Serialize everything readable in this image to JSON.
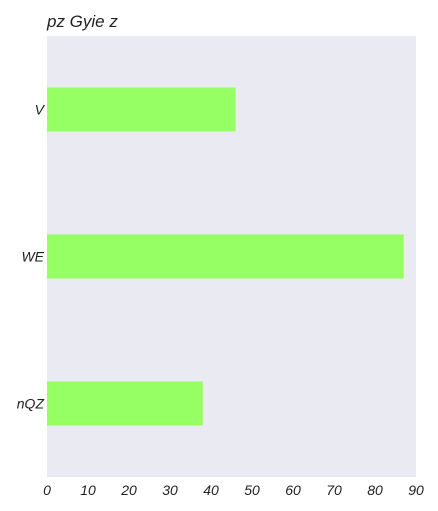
{
  "chart_data": {
    "type": "bar",
    "orientation": "horizontal",
    "title": "pz Gyie z",
    "categories": [
      "V",
      "WE",
      "nQZ"
    ],
    "values": [
      46,
      87,
      38
    ],
    "xlabel": "",
    "ylabel": "",
    "xlim": [
      0,
      90
    ],
    "xticks": [
      "0",
      "10",
      "20",
      "30",
      "40",
      "50",
      "60",
      "70",
      "80",
      "90"
    ],
    "grid": false,
    "colors": {
      "bar": "#96ff64",
      "plot_background": "#eaeaf2"
    }
  }
}
